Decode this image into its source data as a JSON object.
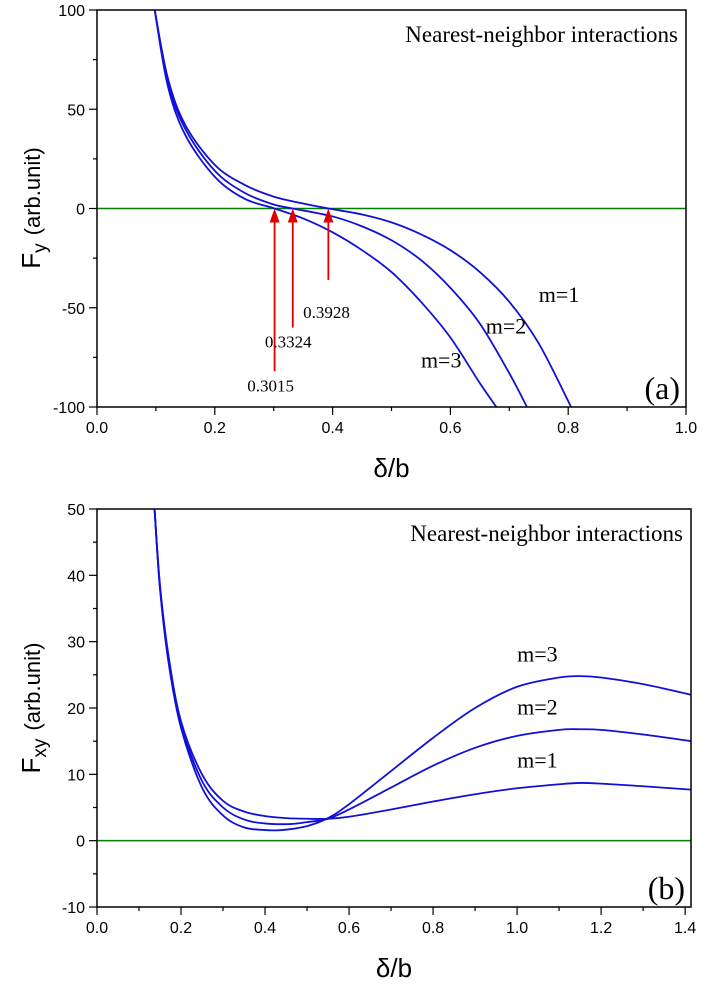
{
  "colors": {
    "curve": "#1010d8",
    "zero_line": "#008000",
    "arrow": "#e00000",
    "axis": "#000000"
  },
  "chart_data": [
    {
      "type": "line",
      "annotation": "Nearest-neighbor interactions",
      "panel_label": "(a)",
      "xlabel": "δ/b",
      "ylabel_main": "F",
      "ylabel_sub": "y",
      "ylabel_unit": "(arb.unit)",
      "xlim": [
        0.0,
        1.0
      ],
      "ylim": [
        -100,
        100
      ],
      "xticks": [
        "0.0",
        "0.2",
        "0.4",
        "0.6",
        "0.8",
        "1.0"
      ],
      "yticks": [
        "-100",
        "-50",
        "0",
        "50",
        "100"
      ],
      "series": [
        {
          "name": "m=1",
          "x": [
            0.098,
            0.12,
            0.15,
            0.2,
            0.25,
            0.3,
            0.35,
            0.3928,
            0.45,
            0.5,
            0.55,
            0.6,
            0.65,
            0.7,
            0.75,
            0.805
          ],
          "y": [
            100,
            66,
            42,
            22,
            12,
            6,
            2.5,
            0,
            -3,
            -7,
            -13,
            -21,
            -32,
            -47,
            -68,
            -100
          ]
        },
        {
          "name": "m=2",
          "x": [
            0.098,
            0.12,
            0.15,
            0.2,
            0.25,
            0.3,
            0.3324,
            0.4,
            0.45,
            0.5,
            0.55,
            0.6,
            0.65,
            0.7,
            0.73
          ],
          "y": [
            100,
            64,
            40,
            19,
            8,
            2,
            0,
            -4,
            -9,
            -16,
            -26,
            -40,
            -58,
            -83,
            -100
          ]
        },
        {
          "name": "m=3",
          "x": [
            0.098,
            0.12,
            0.15,
            0.2,
            0.25,
            0.3015,
            0.35,
            0.4,
            0.45,
            0.5,
            0.55,
            0.6,
            0.65,
            0.678
          ],
          "y": [
            100,
            62,
            37,
            16,
            5,
            0,
            -5,
            -12,
            -21,
            -32,
            -47,
            -65,
            -88,
            -100
          ]
        }
      ],
      "series_labels": [
        {
          "text": "m=1",
          "x": 0.75,
          "y": -47
        },
        {
          "text": "m=2",
          "x": 0.66,
          "y": -63
        },
        {
          "text": "m=3",
          "x": 0.55,
          "y": -80
        }
      ],
      "reference_line": {
        "y": 0
      },
      "arrows": [
        {
          "label": "0.3015",
          "x": 0.3015,
          "tail_y": -82,
          "head_y": 0,
          "label_x": 0.255,
          "label_y": -82
        },
        {
          "label": "0.3324",
          "x": 0.3324,
          "tail_y": -60,
          "head_y": 0,
          "label_x": 0.285,
          "label_y": -60
        },
        {
          "label": "0.3928",
          "x": 0.3928,
          "tail_y": -36,
          "head_y": 0,
          "label_x": 0.35,
          "label_y": -45
        }
      ]
    },
    {
      "type": "line",
      "annotation": "Nearest-neighbor interactions",
      "panel_label": "(b)",
      "xlabel": "δ/b",
      "ylabel_main": "F",
      "ylabel_sub": "xy",
      "ylabel_unit": "(arb.unit)",
      "xlim": [
        0.0,
        1.414
      ],
      "ylim": [
        -10,
        50
      ],
      "xticks": [
        "0.0",
        "0.2",
        "0.4",
        "0.6",
        "0.8",
        "1.0",
        "1.2",
        "1.4"
      ],
      "yticks": [
        "-10",
        "0",
        "10",
        "20",
        "30",
        "40",
        "50"
      ],
      "series": [
        {
          "name": "m=3",
          "x": [
            0.137,
            0.15,
            0.17,
            0.2,
            0.25,
            0.3,
            0.35,
            0.4,
            0.44,
            0.5,
            0.55,
            0.6,
            0.7,
            0.8,
            0.9,
            1.0,
            1.1,
            1.15,
            1.2,
            1.3,
            1.414
          ],
          "y": [
            50,
            38,
            27,
            17,
            8,
            3.8,
            2,
            1.6,
            1.6,
            2.2,
            3.4,
            5.5,
            10.5,
            15.5,
            20,
            23.2,
            24.6,
            24.8,
            24.6,
            23.6,
            22
          ]
        },
        {
          "name": "m=2",
          "x": [
            0.137,
            0.15,
            0.17,
            0.2,
            0.25,
            0.3,
            0.35,
            0.4,
            0.46,
            0.5,
            0.55,
            0.6,
            0.7,
            0.8,
            0.9,
            1.0,
            1.1,
            1.15,
            1.2,
            1.3,
            1.414
          ],
          "y": [
            50,
            38,
            27.5,
            17.5,
            9,
            5,
            3.2,
            2.6,
            2.5,
            2.8,
            3.3,
            4.7,
            8,
            11.3,
            14,
            15.8,
            16.7,
            16.8,
            16.7,
            16,
            15
          ]
        },
        {
          "name": "m=1",
          "x": [
            0.137,
            0.15,
            0.17,
            0.2,
            0.25,
            0.3,
            0.35,
            0.4,
            0.45,
            0.5,
            0.55,
            0.6,
            0.7,
            0.8,
            0.9,
            1.0,
            1.1,
            1.15,
            1.2,
            1.3,
            1.414
          ],
          "y": [
            50,
            38.5,
            28,
            18,
            10,
            6,
            4.4,
            3.7,
            3.4,
            3.3,
            3.3,
            3.6,
            4.7,
            5.9,
            7,
            7.9,
            8.5,
            8.7,
            8.6,
            8.2,
            7.7
          ]
        }
      ],
      "series_labels": [
        {
          "text": "m=3",
          "x": 1.0,
          "y": 27
        },
        {
          "text": "m=2",
          "x": 1.0,
          "y": 19
        },
        {
          "text": "m=1",
          "x": 1.0,
          "y": 11
        }
      ],
      "reference_line": {
        "y": 0
      },
      "arrows": []
    }
  ]
}
